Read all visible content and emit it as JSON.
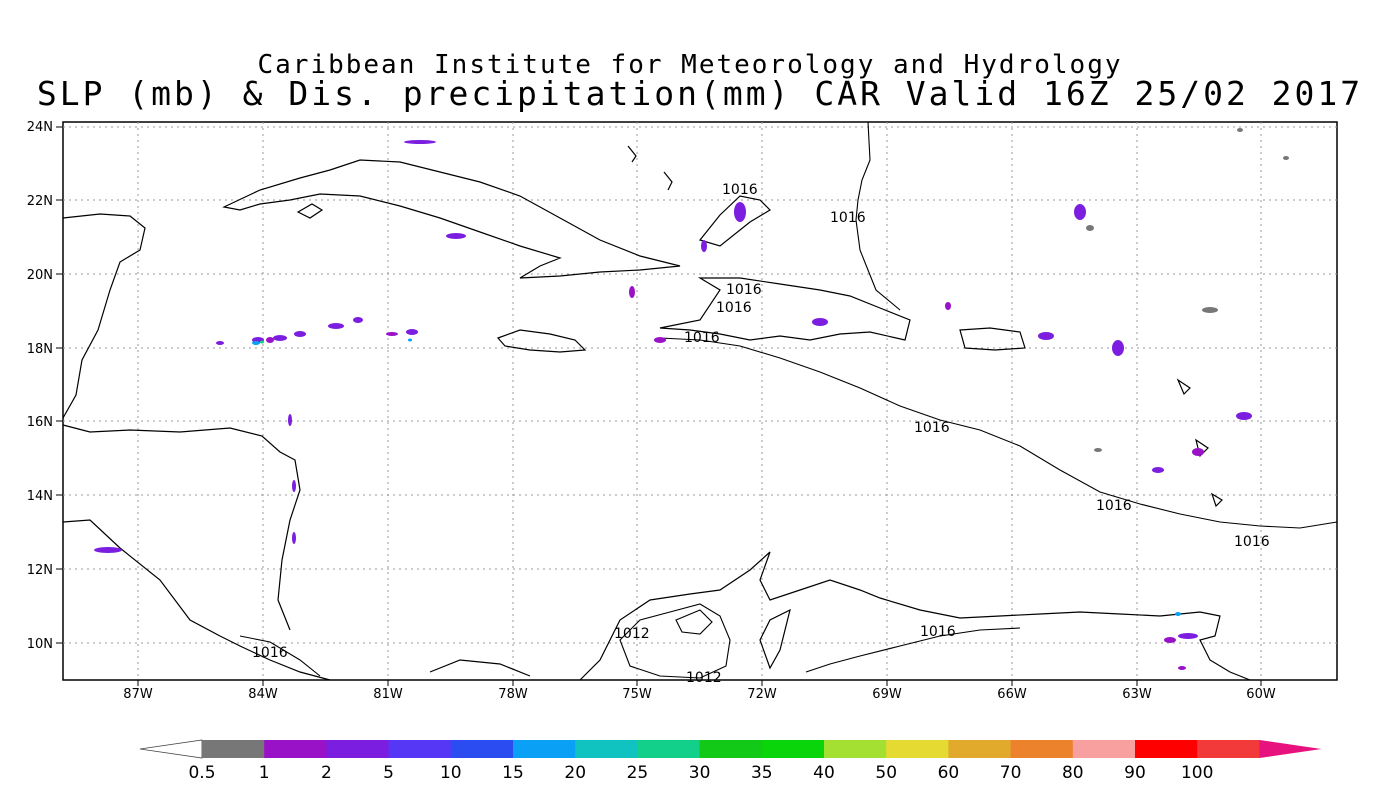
{
  "title_line1": "Caribbean Institute for Meteorology and Hydrology",
  "title_line2": "SLP (mb) & Dis. precipitation(mm) CAR Valid 16Z 25/02 2017",
  "lat_labels": [
    "24N",
    "22N",
    "20N",
    "18N",
    "16N",
    "14N",
    "12N",
    "10N"
  ],
  "lon_labels": [
    "87W",
    "84W",
    "81W",
    "78W",
    "75W",
    "72W",
    "69W",
    "66W",
    "63W",
    "60W"
  ],
  "isobar_labels": [
    "1016",
    "1016",
    "1016",
    "1016",
    "1016",
    "1016",
    "1016",
    "1016",
    "1016",
    "1012",
    "1012",
    "1016"
  ],
  "colorbar": {
    "labels": [
      "0.5",
      "1",
      "2",
      "5",
      "10",
      "15",
      "20",
      "25",
      "30",
      "35",
      "40",
      "50",
      "60",
      "70",
      "80",
      "90",
      "100"
    ],
    "colors": [
      "#ffffff",
      "#777777",
      "#9a12c8",
      "#7b1ee0",
      "#5537f5",
      "#2a4cf0",
      "#0aa0f6",
      "#10c3c0",
      "#12d08a",
      "#12c918",
      "#0ad40a",
      "#a4e032",
      "#e5da32",
      "#e1aa2c",
      "#ec822b",
      "#f8a0a0",
      "#ff0000",
      "#f23a3a",
      "#e8127e"
    ]
  }
}
